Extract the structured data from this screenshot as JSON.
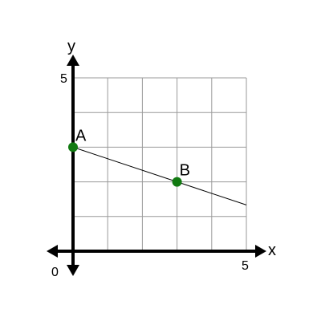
{
  "chart_data": {
    "type": "line",
    "xlabel": "x",
    "ylabel": "y",
    "xlim": [
      0,
      5
    ],
    "ylim": [
      0,
      5
    ],
    "grid": true,
    "tick_labels": {
      "origin": "0",
      "x_max": "5",
      "y_max": "5"
    },
    "points": [
      {
        "label": "A",
        "x": 0,
        "y": 3
      },
      {
        "label": "B",
        "x": 3,
        "y": 2
      }
    ],
    "line": {
      "slope": -0.3333,
      "intercept": 3,
      "x_range": [
        0,
        5
      ]
    },
    "colors": {
      "point": "#117a11",
      "line": "#000000",
      "grid": "#999999"
    }
  }
}
